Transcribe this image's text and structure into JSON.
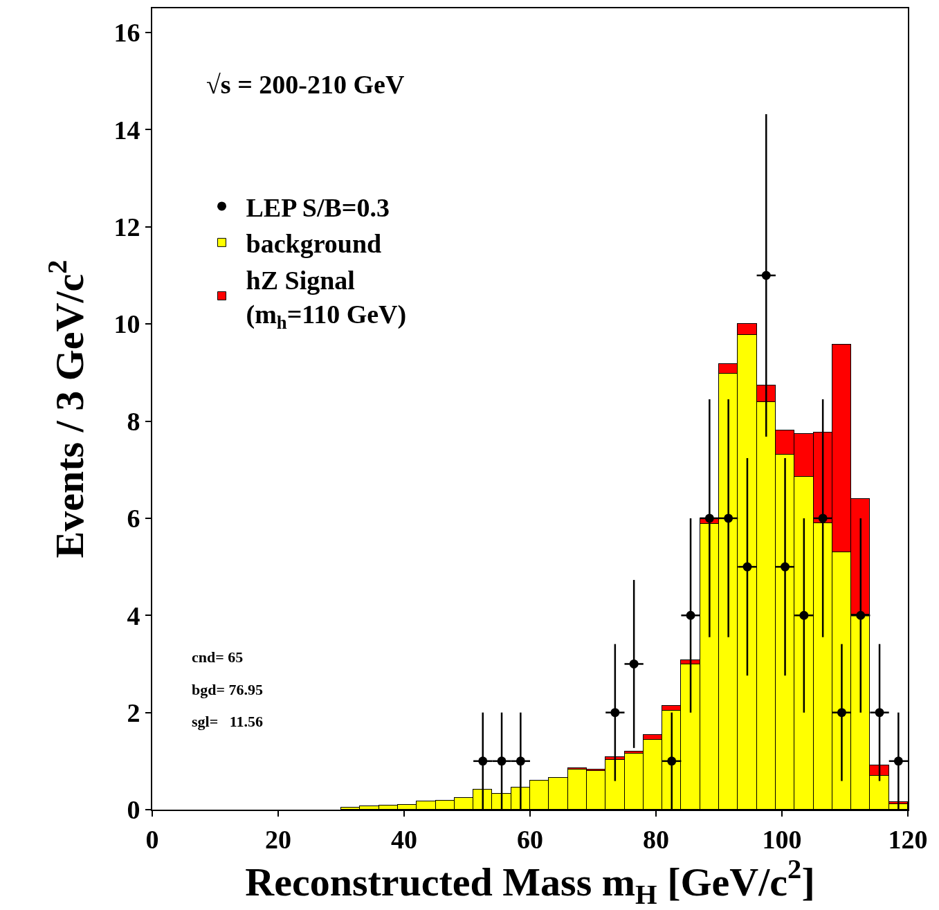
{
  "chart_data": {
    "type": "bar",
    "xlabel": "Reconstructed Mass m$_{H}$ [GeV/c$^{2}$]",
    "ylabel": "Events / 3 GeV/c$^{2}$",
    "x": [
      31.5,
      34.5,
      37.5,
      40.5,
      43.5,
      46.5,
      49.5,
      52.5,
      55.5,
      58.5,
      61.5,
      64.5,
      67.5,
      70.5,
      73.5,
      76.5,
      79.5,
      82.5,
      85.5,
      88.5,
      91.5,
      94.5,
      97.5,
      100.5,
      103.5,
      106.5,
      109.5,
      112.5,
      115.5,
      118.5
    ],
    "stacked": true,
    "series": [
      {
        "name": "LEP S/B=0.3",
        "type": "scatter",
        "color": "#000000",
        "marker": "circle",
        "x": [
          52.5,
          55.5,
          58.5,
          73.5,
          76.5,
          82.5,
          85.5,
          88.5,
          91.5,
          94.5,
          97.5,
          100.5,
          103.5,
          106.5,
          109.5,
          112.5,
          115.5,
          118.5
        ],
        "values": [
          1,
          1,
          1,
          2,
          3,
          1,
          4,
          6,
          6,
          5,
          11,
          5,
          4,
          6,
          2,
          4,
          2,
          1
        ],
        "errors": [
          1,
          1,
          1,
          1.41,
          1.73,
          1,
          2,
          2.45,
          2.45,
          2.24,
          3.32,
          2.24,
          2,
          2.45,
          1.41,
          2,
          1.41,
          1
        ],
        "xerrors": [
          1.5,
          1.5,
          1.5,
          1.5,
          1.5,
          1.5,
          1.5,
          1.5,
          1.5,
          1.5,
          1.5,
          1.5,
          1.5,
          1.5,
          1.5,
          1.5,
          1.5,
          1.5
        ]
      },
      {
        "name": "background",
        "color": "#ffff00",
        "values": [
          0.04,
          0.07,
          0.08,
          0.1,
          0.17,
          0.19,
          0.24,
          0.42,
          0.33,
          0.45,
          0.6,
          0.65,
          0.82,
          0.8,
          1.03,
          1.15,
          1.44,
          2.04,
          2.99,
          5.88,
          8.98,
          9.77,
          8.39,
          7.31,
          6.85,
          5.9,
          5.3,
          4.02,
          0.7,
          0.12
        ]
      },
      {
        "name": "hZ Signal\n(m$_{h}$=110 GeV)",
        "color": "#ff0000",
        "values": [
          null,
          null,
          null,
          null,
          null,
          null,
          null,
          null,
          null,
          null,
          null,
          null,
          0.03,
          0.03,
          0.05,
          0.05,
          0.1,
          0.1,
          0.09,
          0.12,
          0.19,
          0.23,
          0.34,
          0.5,
          0.89,
          1.87,
          4.27,
          2.38,
          0.21,
          0.03
        ]
      }
    ],
    "xlim": [
      0,
      120
    ],
    "xticks": [
      0,
      20,
      40,
      60,
      80,
      100,
      120
    ],
    "ylim": [
      0,
      16.5
    ],
    "yticks": [
      0,
      2,
      4,
      6,
      8,
      10,
      12,
      14,
      16
    ],
    "legend": "top left",
    "annotations": [
      "√s = 200-210 GeV",
      "cnd= 65",
      "bgd= 76.95",
      "sgl=   11.56"
    ]
  }
}
